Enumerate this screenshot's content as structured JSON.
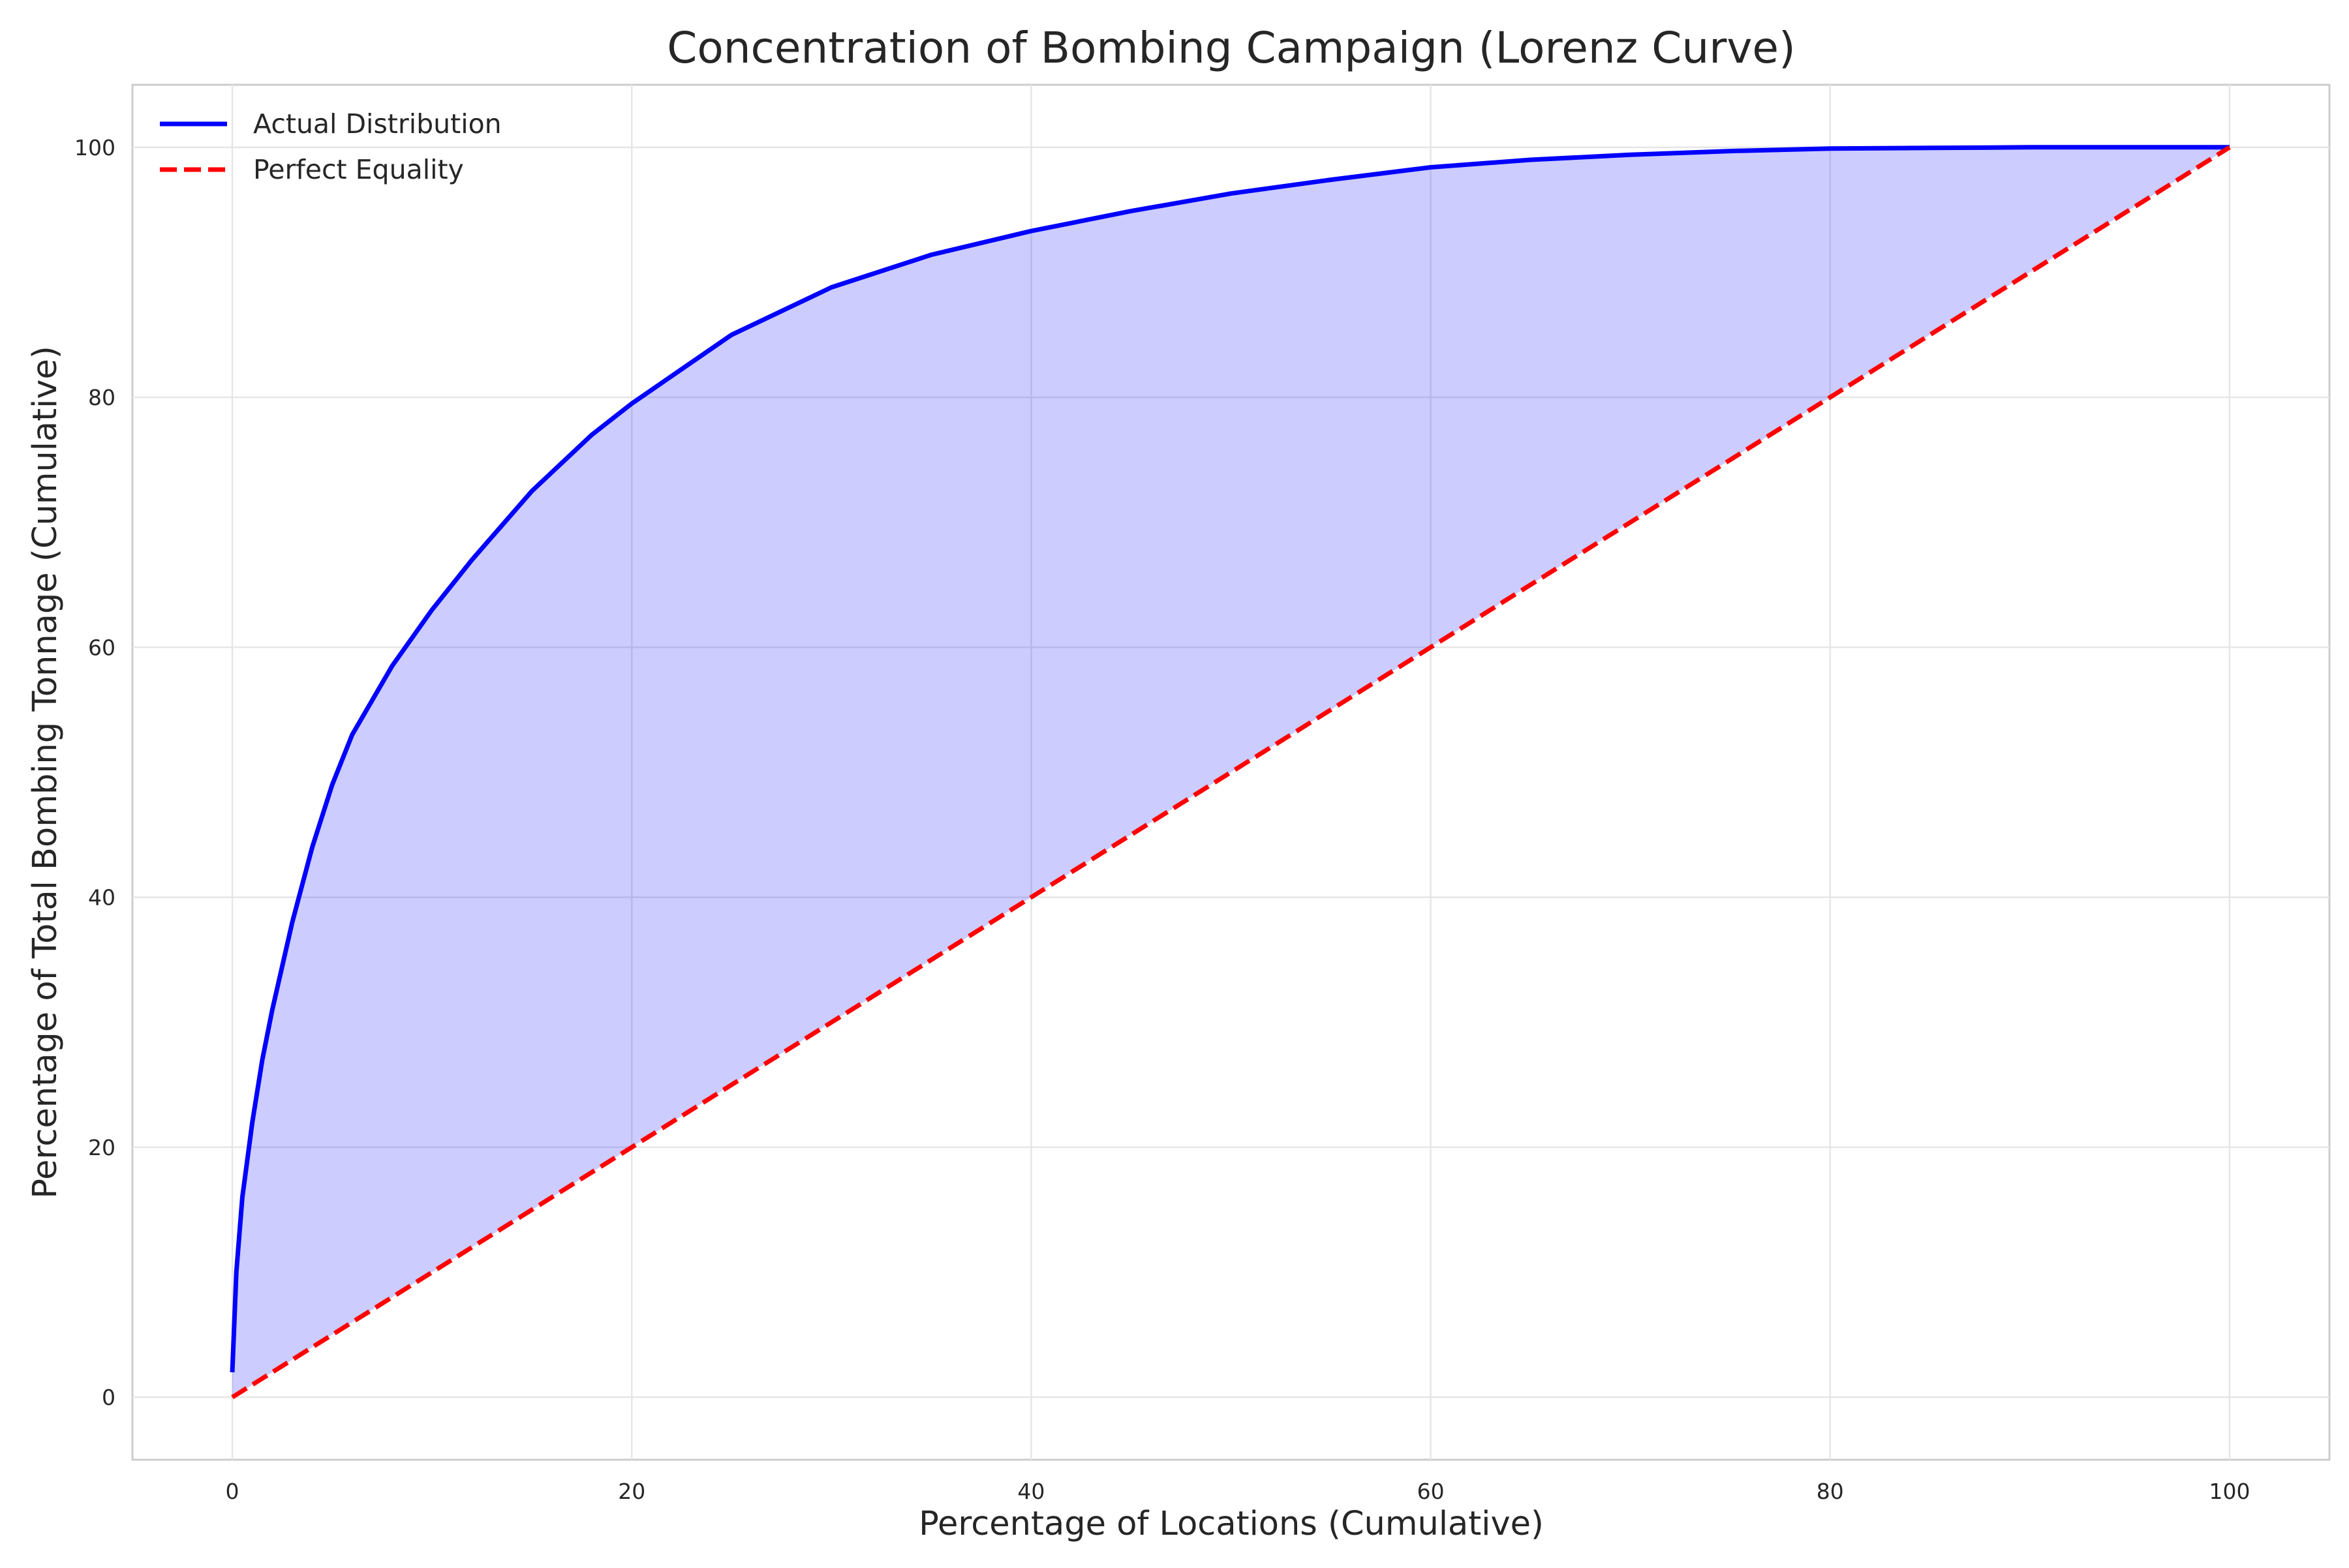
{
  "chart_data": {
    "type": "line",
    "title": "Concentration of Bombing Campaign (Lorenz Curve)",
    "xlabel": "Percentage of Locations (Cumulative)",
    "ylabel": "Percentage of Total Bombing Tonnage (Cumulative)",
    "xlim": [
      -5,
      105
    ],
    "ylim": [
      -5,
      105
    ],
    "xticks": [
      0,
      20,
      40,
      60,
      80,
      100
    ],
    "yticks": [
      0,
      20,
      40,
      60,
      80,
      100
    ],
    "grid": true,
    "legend_position": "top-left",
    "series": [
      {
        "name": "Actual Distribution",
        "style": "solid",
        "color": "#0000ff",
        "fill_to": "Perfect Equality",
        "fill_color": "#0000ff",
        "fill_opacity": 0.2,
        "x": [
          0,
          0.2,
          0.5,
          1,
          1.5,
          2,
          3,
          4,
          5,
          6,
          8,
          10,
          12,
          15,
          18,
          20,
          25,
          30,
          35,
          40,
          45,
          50,
          55,
          60,
          65,
          70,
          75,
          80,
          85,
          90,
          95,
          100
        ],
        "y": [
          2,
          10,
          16,
          22,
          27,
          31,
          38,
          44,
          49,
          53,
          58.5,
          63,
          67,
          72.5,
          77,
          79.5,
          85,
          88.8,
          91.4,
          93.3,
          94.9,
          96.3,
          97.4,
          98.4,
          99.0,
          99.4,
          99.7,
          99.9,
          99.95,
          100,
          100,
          100
        ]
      },
      {
        "name": "Perfect Equality",
        "style": "dashed",
        "color": "#ff0000",
        "x": [
          0,
          100
        ],
        "y": [
          0,
          100
        ]
      }
    ]
  }
}
